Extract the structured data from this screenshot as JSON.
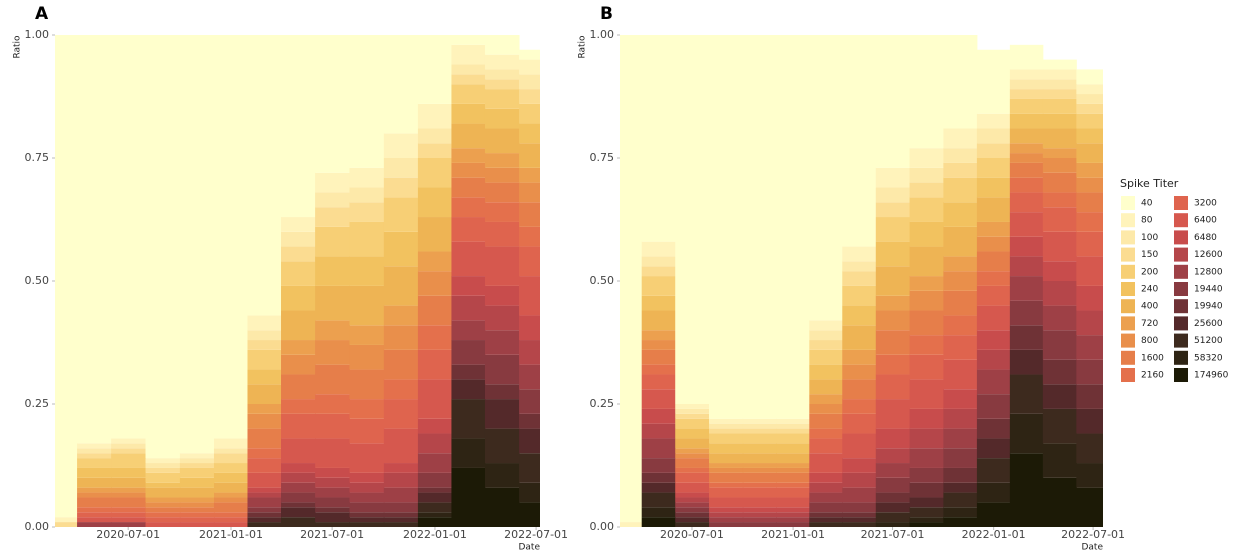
{
  "chart_data": [
    {
      "type": "stacked-bar",
      "panel_label": "A",
      "y_label": "Ratio",
      "x_label": "Date",
      "x": [
        "2020-03-01",
        "2020-05-01",
        "2020-07-01",
        "2020-09-01",
        "2020-11-01",
        "2021-01-01",
        "2021-03-01",
        "2021-05-01",
        "2021-07-01",
        "2021-09-01",
        "2021-11-01",
        "2022-01-01",
        "2022-03-01",
        "2022-05-01",
        "2022-07-01"
      ],
      "xlim": [
        "2020-02-21",
        "2022-07-08"
      ],
      "xticks": [
        "2020-07-01",
        "2021-01-01",
        "2021-07-01",
        "2022-01-01",
        "2022-07-01"
      ],
      "ylim": [
        0,
        1
      ],
      "yticks": [
        {
          "value": 0,
          "label": "0.00"
        },
        {
          "value": 0.25,
          "label": "0.25"
        },
        {
          "value": 0.5,
          "label": "0.50"
        },
        {
          "value": 0.75,
          "label": "0.75"
        },
        {
          "value": 1,
          "label": "1.00"
        }
      ],
      "series": [
        {
          "color": "#ffffcc",
          "values": [
            0.98,
            0.83,
            0.82,
            0.86,
            0.85,
            0.85,
            0.57,
            0.37,
            0.28,
            0.27,
            0.2,
            0.14,
            0.02,
            0.04,
            0.02
          ]
        },
        {
          "color": "#fff3bb",
          "values": [
            0.01,
            0.01,
            0.01,
            0.01,
            0.01,
            0.02,
            0.03,
            0.03,
            0.04,
            0.04,
            0.05,
            0.05,
            0.04,
            0.03,
            0.03
          ]
        },
        {
          "color": "#fde9a9",
          "values": [
            0,
            0.01,
            0.01,
            0.01,
            0.01,
            0.01,
            0.02,
            0.03,
            0.03,
            0.03,
            0.04,
            0.03,
            0.02,
            0.02,
            0.03
          ]
        },
        {
          "color": "#fbdc91",
          "values": [
            0.01,
            0.01,
            0.01,
            0.01,
            0.01,
            0.02,
            0.02,
            0.03,
            0.04,
            0.04,
            0.04,
            0.03,
            0.02,
            0.02,
            0.03
          ]
        },
        {
          "color": "#f7cf75",
          "values": [
            0,
            0.02,
            0.03,
            0.02,
            0.02,
            0.02,
            0.04,
            0.05,
            0.06,
            0.07,
            0.07,
            0.06,
            0.04,
            0.04,
            0.04
          ]
        },
        {
          "color": "#f2c25f",
          "values": [
            0,
            0.02,
            0.02,
            0.01,
            0.02,
            0.02,
            0.03,
            0.05,
            0.06,
            0.06,
            0.07,
            0.06,
            0.04,
            0.04,
            0.04
          ]
        },
        {
          "color": "#eeb454",
          "values": [
            0,
            0.02,
            0.02,
            0.02,
            0.02,
            0.02,
            0.04,
            0.06,
            0.07,
            0.08,
            0.08,
            0.07,
            0.05,
            0.05,
            0.05
          ]
        },
        {
          "color": "#eca04f",
          "values": [
            0,
            0.01,
            0.01,
            0.01,
            0.01,
            0.01,
            0.02,
            0.03,
            0.04,
            0.04,
            0.04,
            0.04,
            0.03,
            0.03,
            0.03
          ]
        },
        {
          "color": "#e98f4b",
          "values": [
            0,
            0.01,
            0.01,
            0.01,
            0.01,
            0.01,
            0.03,
            0.04,
            0.05,
            0.05,
            0.05,
            0.05,
            0.03,
            0.03,
            0.04
          ]
        },
        {
          "color": "#e67e4a",
          "values": [
            0,
            0.02,
            0.02,
            0.01,
            0.01,
            0.02,
            0.04,
            0.05,
            0.06,
            0.06,
            0.06,
            0.06,
            0.04,
            0.04,
            0.05
          ]
        },
        {
          "color": "#e4704c",
          "values": [
            0,
            0.01,
            0.01,
            0.01,
            0.01,
            0.01,
            0.02,
            0.03,
            0.04,
            0.04,
            0.04,
            0.05,
            0.04,
            0.04,
            0.04
          ]
        },
        {
          "color": "#df644e",
          "values": [
            0,
            0.01,
            0.01,
            0.01,
            0.01,
            0.01,
            0.03,
            0.05,
            0.05,
            0.05,
            0.06,
            0.06,
            0.05,
            0.05,
            0.06
          ]
        },
        {
          "color": "#d6584e",
          "values": [
            0,
            0.01,
            0.01,
            0.01,
            0.01,
            0.01,
            0.03,
            0.05,
            0.06,
            0.06,
            0.07,
            0.08,
            0.07,
            0.08,
            0.08
          ]
        },
        {
          "color": "#c84c4c",
          "values": [
            0,
            0,
            0,
            0,
            0,
            0,
            0.01,
            0.02,
            0.02,
            0.02,
            0.02,
            0.03,
            0.04,
            0.04,
            0.05
          ]
        },
        {
          "color": "#b5464a",
          "values": [
            0,
            0,
            0,
            0,
            0,
            0,
            0.01,
            0.02,
            0.02,
            0.02,
            0.03,
            0.04,
            0.05,
            0.05,
            0.05
          ]
        },
        {
          "color": "#9e4046",
          "values": [
            0,
            0.01,
            0.01,
            0,
            0,
            0,
            0.02,
            0.02,
            0.02,
            0.02,
            0.03,
            0.04,
            0.04,
            0.05,
            0.05
          ]
        },
        {
          "color": "#883a40",
          "values": [
            0,
            0,
            0,
            0,
            0,
            0,
            0.01,
            0.02,
            0.02,
            0.02,
            0.02,
            0.03,
            0.05,
            0.06,
            0.05
          ]
        },
        {
          "color": "#6f3236",
          "values": [
            0,
            0,
            0,
            0,
            0,
            0,
            0.01,
            0.01,
            0.01,
            0.01,
            0.01,
            0.01,
            0.03,
            0.03,
            0.03
          ]
        },
        {
          "color": "#54292a",
          "values": [
            0,
            0,
            0,
            0,
            0,
            0,
            0.01,
            0.02,
            0.02,
            0.01,
            0.01,
            0.02,
            0.04,
            0.06,
            0.05
          ]
        },
        {
          "color": "#3d2a1e",
          "values": [
            0,
            0,
            0,
            0,
            0,
            0,
            0.01,
            0.02,
            0.01,
            0.01,
            0.01,
            0.02,
            0.08,
            0.07,
            0.06
          ]
        },
        {
          "color": "#2e2414",
          "values": [
            0,
            0,
            0,
            0,
            0,
            0,
            0,
            0,
            0,
            0,
            0,
            0.01,
            0.06,
            0.05,
            0.04
          ]
        },
        {
          "color": "#1c1a06",
          "values": [
            0,
            0,
            0,
            0,
            0,
            0,
            0,
            0,
            0,
            0,
            0,
            0.02,
            0.12,
            0.08,
            0.05
          ]
        }
      ]
    },
    {
      "type": "stacked-bar",
      "panel_label": "B",
      "y_label": "Ratio",
      "x_label": "Date",
      "legend_title": "Spike Titer",
      "x": [
        "2020-03-01",
        "2020-05-01",
        "2020-07-01",
        "2020-09-01",
        "2020-11-01",
        "2021-01-01",
        "2021-03-01",
        "2021-05-01",
        "2021-07-01",
        "2021-09-01",
        "2021-11-01",
        "2022-01-01",
        "2022-03-01",
        "2022-05-01",
        "2022-07-01"
      ],
      "xlim": [
        "2020-02-21",
        "2022-07-19"
      ],
      "xticks": [
        "2020-07-01",
        "2021-01-01",
        "2021-07-01",
        "2022-01-01",
        "2022-07-01"
      ],
      "ylim": [
        0,
        1
      ],
      "yticks": [
        {
          "value": 0,
          "label": "0.00"
        },
        {
          "value": 0.25,
          "label": "0.25"
        },
        {
          "value": 0.5,
          "label": "0.50"
        },
        {
          "value": 0.75,
          "label": "0.75"
        },
        {
          "value": 1,
          "label": "1.00"
        }
      ],
      "series": [
        {
          "name": "40",
          "color": "#ffffcc",
          "values": [
            0.99,
            0.42,
            0.76,
            0.79,
            0.79,
            0.79,
            0.58,
            0.44,
            0.28,
            0.25,
            0.2,
            0.13,
            0.05,
            0.02,
            0.03
          ]
        },
        {
          "name": "80",
          "color": "#fff3bb",
          "values": [
            0.01,
            0.03,
            0.01,
            0.01,
            0.01,
            0.01,
            0.02,
            0.03,
            0.04,
            0.04,
            0.04,
            0.03,
            0.02,
            0.02,
            0.02
          ]
        },
        {
          "name": "100",
          "color": "#fde9a9",
          "values": [
            0,
            0.02,
            0.01,
            0.01,
            0.01,
            0.01,
            0.02,
            0.02,
            0.03,
            0.03,
            0.03,
            0.03,
            0.02,
            0.02,
            0.02
          ]
        },
        {
          "name": "150",
          "color": "#fbdc91",
          "values": [
            0,
            0.02,
            0.01,
            0.01,
            0.01,
            0.01,
            0.02,
            0.03,
            0.03,
            0.03,
            0.03,
            0.03,
            0.02,
            0.02,
            0.02
          ]
        },
        {
          "name": "200",
          "color": "#f7cf75",
          "values": [
            0,
            0.04,
            0.02,
            0.02,
            0.02,
            0.02,
            0.03,
            0.04,
            0.05,
            0.05,
            0.05,
            0.04,
            0.03,
            0.03,
            0.03
          ]
        },
        {
          "name": "240",
          "color": "#f2c25f",
          "values": [
            0,
            0.03,
            0.02,
            0.02,
            0.02,
            0.02,
            0.03,
            0.04,
            0.05,
            0.05,
            0.05,
            0.04,
            0.03,
            0.03,
            0.03
          ]
        },
        {
          "name": "400",
          "color": "#eeb454",
          "values": [
            0,
            0.04,
            0.02,
            0.02,
            0.02,
            0.02,
            0.03,
            0.05,
            0.06,
            0.06,
            0.06,
            0.05,
            0.03,
            0.04,
            0.04
          ]
        },
        {
          "name": "720",
          "color": "#eca04f",
          "values": [
            0,
            0.02,
            0.01,
            0.01,
            0.01,
            0.01,
            0.02,
            0.03,
            0.03,
            0.03,
            0.03,
            0.03,
            0.02,
            0.02,
            0.03
          ]
        },
        {
          "name": "800",
          "color": "#e98f4b",
          "values": [
            0,
            0.02,
            0.01,
            0.01,
            0.01,
            0.01,
            0.02,
            0.03,
            0.04,
            0.04,
            0.04,
            0.03,
            0.02,
            0.03,
            0.03
          ]
        },
        {
          "name": "1600",
          "color": "#e67e4a",
          "values": [
            0,
            0.03,
            0.02,
            0.02,
            0.02,
            0.02,
            0.03,
            0.04,
            0.05,
            0.05,
            0.05,
            0.04,
            0.03,
            0.04,
            0.04
          ]
        },
        {
          "name": "2160",
          "color": "#e4704c",
          "values": [
            0,
            0.02,
            0.01,
            0.01,
            0.01,
            0.01,
            0.02,
            0.03,
            0.04,
            0.04,
            0.04,
            0.03,
            0.03,
            0.03,
            0.04
          ]
        },
        {
          "name": "3200",
          "color": "#df644e",
          "values": [
            0,
            0.03,
            0.02,
            0.02,
            0.02,
            0.02,
            0.03,
            0.04,
            0.05,
            0.05,
            0.05,
            0.04,
            0.04,
            0.05,
            0.05
          ]
        },
        {
          "name": "6400",
          "color": "#d6584e",
          "values": [
            0,
            0.04,
            0.02,
            0.02,
            0.02,
            0.02,
            0.04,
            0.05,
            0.06,
            0.06,
            0.06,
            0.05,
            0.05,
            0.06,
            0.06
          ]
        },
        {
          "name": "6480",
          "color": "#c84c4c",
          "values": [
            0,
            0.03,
            0.01,
            0.01,
            0.01,
            0.01,
            0.02,
            0.03,
            0.04,
            0.04,
            0.04,
            0.04,
            0.04,
            0.04,
            0.05
          ]
        },
        {
          "name": "12600",
          "color": "#b5464a",
          "values": [
            0,
            0.03,
            0.01,
            0.01,
            0.01,
            0.01,
            0.02,
            0.03,
            0.03,
            0.04,
            0.04,
            0.04,
            0.04,
            0.05,
            0.05
          ]
        },
        {
          "name": "12800",
          "color": "#9e4046",
          "values": [
            0,
            0.04,
            0.01,
            0.01,
            0.01,
            0.01,
            0.02,
            0.03,
            0.03,
            0.04,
            0.04,
            0.05,
            0.05,
            0.05,
            0.05
          ]
        },
        {
          "name": "19440",
          "color": "#883a40",
          "values": [
            0,
            0.03,
            0.01,
            0.01,
            0.01,
            0.01,
            0.02,
            0.02,
            0.03,
            0.03,
            0.04,
            0.05,
            0.05,
            0.06,
            0.05
          ]
        },
        {
          "name": "19940",
          "color": "#6f3236",
          "values": [
            0,
            0.02,
            0.01,
            0,
            0,
            0,
            0.01,
            0.01,
            0.02,
            0.03,
            0.03,
            0.04,
            0.05,
            0.05,
            0.05
          ]
        },
        {
          "name": "25600",
          "color": "#54292a",
          "values": [
            0,
            0.02,
            0.01,
            0,
            0,
            0,
            0.01,
            0.01,
            0.02,
            0.02,
            0.02,
            0.04,
            0.05,
            0.05,
            0.05
          ]
        },
        {
          "name": "51200",
          "color": "#3d2a1e",
          "values": [
            0,
            0.03,
            0.01,
            0,
            0,
            0,
            0.01,
            0.01,
            0.02,
            0.02,
            0.03,
            0.05,
            0.08,
            0.07,
            0.06
          ]
        },
        {
          "name": "58320",
          "color": "#2e2414",
          "values": [
            0,
            0.02,
            0,
            0,
            0,
            0,
            0,
            0,
            0.01,
            0.01,
            0.02,
            0.04,
            0.08,
            0.07,
            0.05
          ]
        },
        {
          "name": "174960",
          "color": "#1c1a06",
          "values": [
            0,
            0.02,
            0,
            0,
            0,
            0,
            0,
            0,
            0,
            0.01,
            0.02,
            0.05,
            0.15,
            0.1,
            0.08
          ]
        }
      ]
    }
  ]
}
